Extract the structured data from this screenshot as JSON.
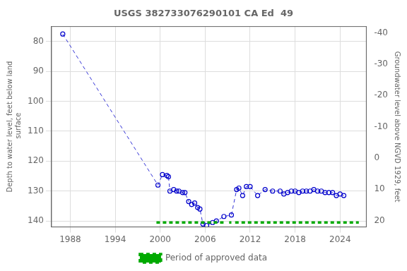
{
  "chart_data": {
    "type": "line",
    "title": "USGS 382733076290101 CA Ed  49",
    "ylabel": "Depth to water level, feet below land\n surface",
    "y2label": "Groundwater level above NGVD 1929, feet",
    "xlim": [
      1985.5,
      2027.5
    ],
    "xticks": [
      1988,
      1994,
      2000,
      2006,
      2012,
      2018,
      2024
    ],
    "ylim": [
      142,
      75
    ],
    "yticks": [
      80,
      90,
      100,
      110,
      120,
      130,
      140
    ],
    "y2lim": [
      22,
      -42
    ],
    "y2ticks": [
      20,
      10,
      0,
      -10,
      -20,
      -30,
      -40
    ],
    "grid": true,
    "legend": "bottom",
    "series": [
      {
        "type": "line",
        "color": "#0000cc",
        "line_style": "dashed",
        "marker": "circle",
        "x": [
          1987.0,
          1999.7,
          2000.3,
          2000.9,
          2001.1,
          2001.3,
          2001.8,
          2002.2,
          2002.5,
          2003.0,
          2003.3,
          2003.8,
          2004.2,
          2004.6,
          2005.0,
          2005.3,
          2005.7,
          2006.2,
          2007.0,
          2007.5,
          2008.5,
          2009.5,
          2010.2,
          2010.5,
          2011.0,
          2011.5,
          2012.0,
          2013.0,
          2014.0,
          2015.0,
          2016.0,
          2016.5,
          2017.0,
          2017.5,
          2018.0,
          2018.5,
          2019.0,
          2019.5,
          2020.0,
          2020.5,
          2021.0,
          2021.5,
          2022.0,
          2022.5,
          2023.0,
          2023.5,
          2024.0,
          2024.5
        ],
        "values": [
          77.5,
          128.0,
          124.5,
          124.8,
          125.2,
          130.0,
          129.5,
          130.0,
          130.0,
          130.5,
          130.5,
          133.5,
          134.5,
          134.0,
          135.5,
          136.0,
          141.0,
          141.5,
          140.5,
          140.0,
          138.5,
          138.0,
          129.5,
          129.0,
          131.5,
          128.5,
          128.5,
          131.5,
          129.5,
          130.0,
          130.0,
          131.0,
          130.5,
          130.0,
          130.0,
          130.5,
          130.0,
          130.0,
          130.0,
          129.5,
          130.0,
          130.0,
          130.5,
          130.5,
          130.5,
          131.5,
          131.0,
          131.5
        ]
      },
      {
        "name": "Period of approved data",
        "type": "line",
        "color": "#00aa00",
        "line_style": "dashed",
        "periods": [
          [
            1999.5,
            2008.5
          ],
          [
            2009.2,
            2009.5
          ],
          [
            2010.0,
            2026.5
          ]
        ],
        "level": 140.5
      }
    ]
  }
}
